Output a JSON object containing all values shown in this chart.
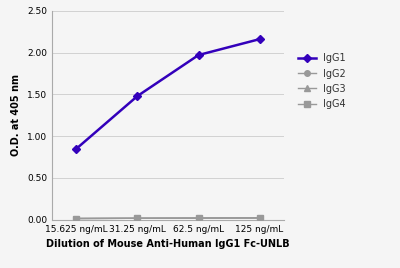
{
  "x_labels": [
    "15.625 ng/mL",
    "31.25 ng/mL",
    "62.5 ng/mL",
    "125 ng/mL"
  ],
  "x_positions": [
    0,
    1,
    2,
    3
  ],
  "series": [
    {
      "name": "IgG1",
      "values": [
        0.85,
        1.48,
        1.97,
        2.16
      ],
      "color": "#3300bb",
      "marker": "D",
      "markersize": 4,
      "linewidth": 1.8,
      "zorder": 5
    },
    {
      "name": "IgG2",
      "values": [
        0.015,
        0.018,
        0.02,
        0.022
      ],
      "color": "#999999",
      "marker": "o",
      "markersize": 4,
      "linewidth": 1.0,
      "zorder": 4
    },
    {
      "name": "IgG3",
      "values": [
        0.015,
        0.018,
        0.02,
        0.022
      ],
      "color": "#999999",
      "marker": "^",
      "markersize": 4,
      "linewidth": 1.0,
      "zorder": 3
    },
    {
      "name": "IgG4",
      "values": [
        0.015,
        0.018,
        0.02,
        0.022
      ],
      "color": "#999999",
      "marker": "s",
      "markersize": 4,
      "linewidth": 1.0,
      "zorder": 2
    }
  ],
  "ylabel": "O.D. at 405 nm",
  "xlabel": "Dilution of Mouse Anti-Human IgG1 Fc-UNLB",
  "ylim": [
    0.0,
    2.5
  ],
  "yticks": [
    0.0,
    0.5,
    1.0,
    1.5,
    2.0,
    2.5
  ],
  "background_color": "#f5f5f5",
  "grid_color": "#cccccc",
  "axis_fontsize": 6.5,
  "legend_fontsize": 7,
  "xlabel_fontsize": 7,
  "ylabel_fontsize": 7
}
